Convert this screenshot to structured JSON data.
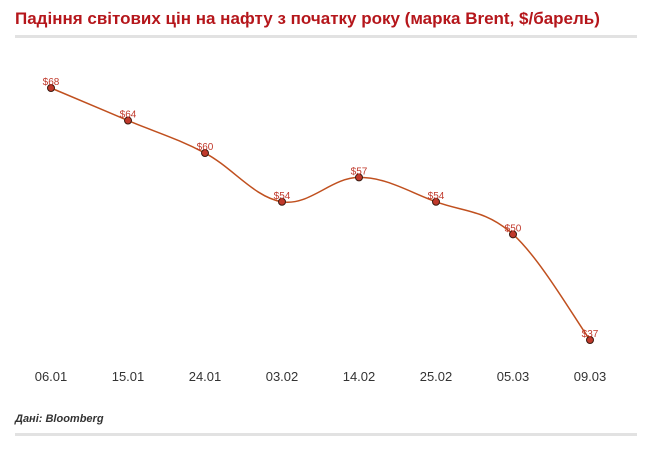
{
  "chart_data": {
    "type": "line",
    "title": "Падіння світових цін на нафту з початку року (марка Brent, $/барель)",
    "categories": [
      "06.01",
      "15.01",
      "24.01",
      "03.02",
      "14.02",
      "25.02",
      "05.03",
      "09.03"
    ],
    "series": [
      {
        "name": "Brent",
        "values": [
          68,
          64,
          60,
          54,
          57,
          54,
          50,
          37
        ]
      }
    ],
    "data_labels": [
      "$68",
      "$64",
      "$60",
      "$54",
      "$57",
      "$54",
      "$50",
      "$37"
    ],
    "ylim": [
      37,
      68
    ],
    "xlabel": "",
    "ylabel": "",
    "grid": false,
    "source": "Дані: Bloomberg",
    "colors": {
      "line": "#c0501f",
      "marker_fill": "#c0392b",
      "marker_stroke": "#3a1a10",
      "title": "#b5161b"
    }
  }
}
